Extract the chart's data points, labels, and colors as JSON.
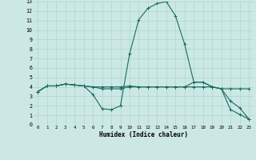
{
  "title": "",
  "xlabel": "Humidex (Indice chaleur)",
  "bg_color": "#cce8e4",
  "grid_color": "#aad4d0",
  "line_color": "#1a6b60",
  "xlim": [
    -0.5,
    23.5
  ],
  "ylim": [
    0,
    13
  ],
  "xticks": [
    0,
    1,
    2,
    3,
    4,
    5,
    6,
    7,
    8,
    9,
    10,
    11,
    12,
    13,
    14,
    15,
    16,
    17,
    18,
    19,
    20,
    21,
    22,
    23
  ],
  "yticks": [
    0,
    1,
    2,
    3,
    4,
    5,
    6,
    7,
    8,
    9,
    10,
    11,
    12,
    13
  ],
  "line1_x": [
    0,
    1,
    2,
    3,
    4,
    5,
    6,
    7,
    8,
    9,
    10,
    11,
    12,
    13,
    14,
    15,
    16,
    17,
    18,
    19,
    20,
    21,
    22,
    23
  ],
  "line1_y": [
    3.5,
    4.1,
    4.1,
    4.3,
    4.2,
    4.1,
    4.0,
    4.0,
    4.0,
    4.0,
    4.1,
    4.0,
    4.0,
    4.0,
    4.0,
    4.0,
    4.0,
    4.5,
    4.5,
    4.0,
    3.8,
    3.8,
    3.8,
    3.8
  ],
  "line2_x": [
    0,
    1,
    2,
    3,
    4,
    5,
    6,
    7,
    8,
    9,
    10,
    11,
    12,
    13,
    14,
    15,
    16,
    17,
    18,
    19,
    20,
    21,
    22,
    23
  ],
  "line2_y": [
    3.5,
    4.1,
    4.1,
    4.3,
    4.2,
    4.1,
    3.2,
    1.7,
    1.6,
    2.0,
    7.5,
    11.1,
    12.3,
    12.8,
    13.0,
    11.5,
    8.5,
    4.5,
    4.5,
    4.0,
    3.8,
    1.6,
    1.1,
    0.6
  ],
  "line3_x": [
    0,
    1,
    2,
    3,
    4,
    5,
    6,
    7,
    8,
    9,
    10,
    11,
    12,
    13,
    14,
    15,
    16,
    17,
    18,
    19,
    20,
    21,
    22,
    23
  ],
  "line3_y": [
    3.5,
    4.1,
    4.1,
    4.3,
    4.2,
    4.1,
    4.0,
    3.8,
    3.8,
    3.8,
    4.0,
    4.0,
    4.0,
    4.0,
    4.0,
    4.0,
    4.0,
    4.0,
    4.0,
    4.0,
    3.8,
    2.5,
    1.8,
    0.6
  ]
}
